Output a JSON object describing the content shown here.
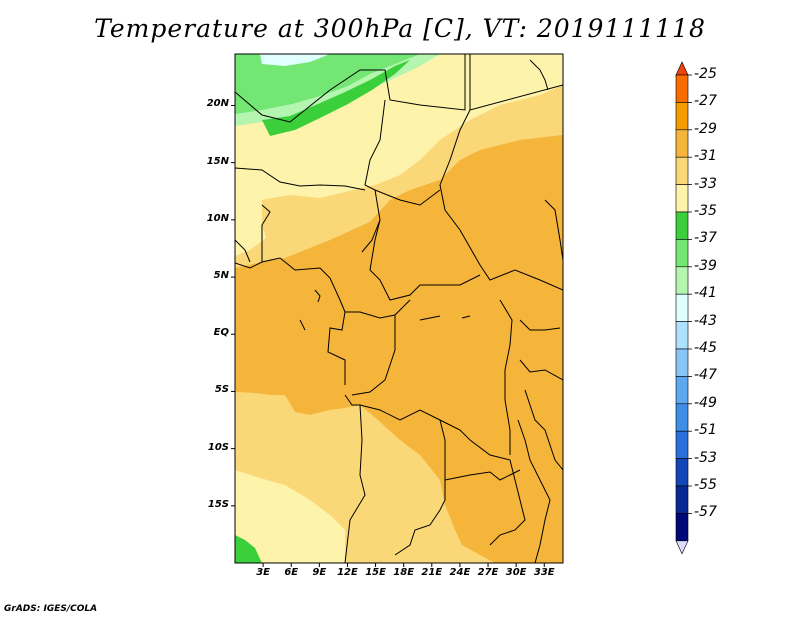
{
  "title": "Temperature at 300hPa [C], VT: 2019111118",
  "footer": "GrADS: IGES/COLA",
  "map": {
    "lat_labels": [
      "20N",
      "15N",
      "10N",
      "5N",
      "EQ",
      "5S",
      "10S",
      "15S"
    ],
    "lon_labels": [
      "3E",
      "6E",
      "9E",
      "12E",
      "15E",
      "18E",
      "21E",
      "24E",
      "27E",
      "30E",
      "33E"
    ],
    "lat_range": [
      -20,
      24.5
    ],
    "lon_range": [
      0,
      35
    ]
  },
  "legend": {
    "labels": [
      "-25",
      "-27",
      "-29",
      "-31",
      "-33",
      "-35",
      "-37",
      "-39",
      "-41",
      "-43",
      "-45",
      "-47",
      "-49",
      "-51",
      "-53",
      "-55",
      "-57"
    ],
    "colors": [
      "#f0420c",
      "#f86c00",
      "#f59b00",
      "#f5b43a",
      "#fad777",
      "#fdf3aa",
      "#3ccf3c",
      "#74e674",
      "#b4f5b0",
      "#e1ffff",
      "#aee1fb",
      "#89c6f5",
      "#5ea8f0",
      "#3f8fe8",
      "#2a6fdc",
      "#1546b8",
      "#0a2893",
      "#000778",
      "#dddcff"
    ]
  },
  "colors": {
    "warm_orange": "#f5b43a",
    "light_orange": "#fad777",
    "pale_yellow": "#fdf3aa",
    "green": "#3ccf3c",
    "light_green": "#74e674",
    "pale_green": "#b4f5b0",
    "cyan_white": "#e1ffff"
  }
}
